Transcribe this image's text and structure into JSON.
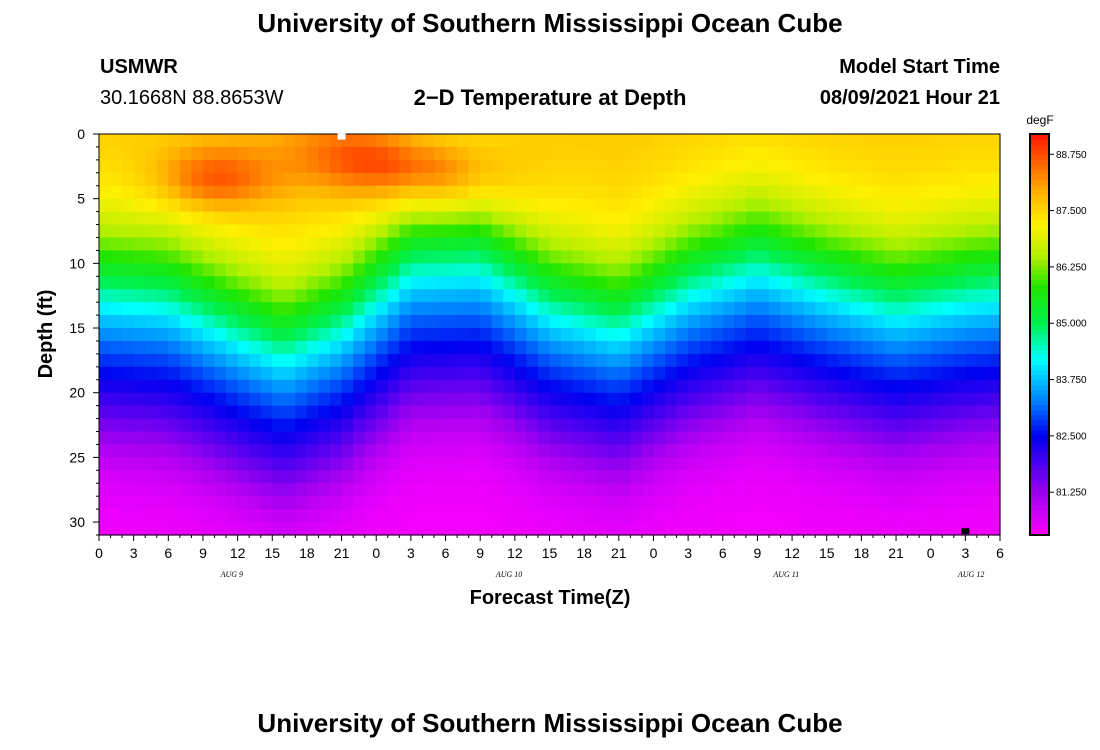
{
  "header": {
    "title": "University of Southern Mississippi Ocean Cube",
    "footer_title": "University of Southern Mississippi Ocean Cube",
    "station": "USMWR",
    "coords": "30.1668N  88.8653W",
    "plot_title": "2−D Temperature at Depth",
    "start_label": "Model Start Time",
    "start_value": "08/09/2021 Hour 21"
  },
  "chart_data": {
    "type": "heatmap",
    "title": "2-D Temperature at Depth",
    "xlabel": "Forecast Time(Z)",
    "ylabel": "Depth (ft)",
    "x_range": [
      0,
      78
    ],
    "y_range": [
      0,
      31
    ],
    "x_tick_values": [
      0,
      3,
      6,
      9,
      12,
      15,
      18,
      21,
      24,
      27,
      30,
      33,
      36,
      39,
      42,
      45,
      48,
      51,
      54,
      57,
      60,
      63,
      66,
      69,
      72,
      75,
      78
    ],
    "x_tick_labels": [
      "0",
      "3",
      "6",
      "9",
      "12",
      "15",
      "18",
      "21",
      "0",
      "3",
      "6",
      "9",
      "12",
      "15",
      "18",
      "21",
      "0",
      "3",
      "6",
      "9",
      "12",
      "15",
      "18",
      "21",
      "0",
      "3",
      "6"
    ],
    "y_ticks": [
      0,
      5,
      10,
      15,
      20,
      25,
      30
    ],
    "date_labels": [
      {
        "x": 11.5,
        "label": "AUG 9"
      },
      {
        "x": 35.5,
        "label": "AUG 10"
      },
      {
        "x": 59.5,
        "label": "AUG 11"
      },
      {
        "x": 75.5,
        "label": "AUG 12"
      }
    ],
    "colorbar": {
      "unit": "degF",
      "min": 80.3,
      "max": 89.2,
      "labels": [
        "88.750",
        "87.500",
        "86.250",
        "85.000",
        "83.750",
        "82.500",
        "81.250"
      ],
      "label_values": [
        88.75,
        87.5,
        86.25,
        85.0,
        83.75,
        82.5,
        81.25
      ]
    },
    "thermocline_depth_ft": {
      "hours": [
        0,
        6,
        12,
        16,
        21,
        27,
        33,
        39,
        45,
        51,
        57,
        63,
        69,
        75,
        78
      ],
      "depth": [
        11.5,
        12.0,
        14.5,
        16.0,
        14.0,
        9.5,
        9.2,
        12.5,
        14.0,
        11.0,
        9.2,
        11.0,
        12.5,
        11.5,
        11.2
      ]
    },
    "markers": [
      {
        "name": "model-start",
        "hour": 21,
        "depth": 0.2,
        "color": "#ffffff"
      },
      {
        "name": "forecast-end",
        "hour": 75,
        "depth": 30.7,
        "color": "#000000"
      }
    ]
  }
}
